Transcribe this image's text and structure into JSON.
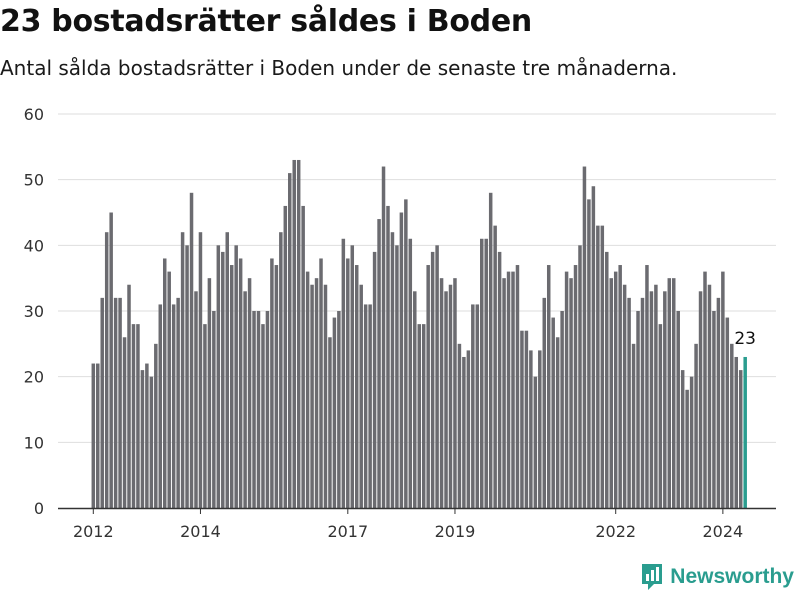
{
  "header": {
    "title": "23 bostadsrätter såldes i Boden",
    "subtitle": "Antal sålda bostadsrätter i Boden under de senaste tre månaderna."
  },
  "brand": {
    "name": "Newsworthy",
    "icon": "newsworthy-logo-icon"
  },
  "colors": {
    "bar": "#6b6b70",
    "highlight": "#2a9d8f",
    "grid": "#dedede",
    "axis": "#333333"
  },
  "chart_data": {
    "type": "bar",
    "title": "23 bostadsrätter såldes i Boden",
    "xlabel": "",
    "ylabel": "",
    "ylim": [
      0,
      60
    ],
    "yticks": [
      0,
      10,
      20,
      30,
      40,
      50,
      60
    ],
    "grid": true,
    "start": "2012-01",
    "frequency": "monthly",
    "xtick_labels": [
      {
        "label": "2012",
        "month_index": 0
      },
      {
        "label": "2014",
        "month_index": 24
      },
      {
        "label": "2017",
        "month_index": 57
      },
      {
        "label": "2019",
        "month_index": 81
      },
      {
        "label": "2022",
        "month_index": 117
      },
      {
        "label": "2024",
        "month_index": 141
      }
    ],
    "values": [
      22,
      22,
      32,
      42,
      45,
      32,
      32,
      26,
      34,
      28,
      28,
      21,
      22,
      20,
      25,
      31,
      38,
      36,
      31,
      32,
      42,
      40,
      48,
      33,
      42,
      28,
      35,
      30,
      40,
      39,
      42,
      37,
      40,
      38,
      33,
      35,
      30,
      30,
      28,
      30,
      38,
      37,
      42,
      46,
      51,
      53,
      53,
      46,
      36,
      34,
      35,
      38,
      34,
      26,
      29,
      30,
      41,
      38,
      40,
      37,
      34,
      31,
      31,
      39,
      44,
      52,
      46,
      42,
      40,
      45,
      47,
      41,
      33,
      28,
      28,
      37,
      39,
      40,
      35,
      33,
      34,
      35,
      25,
      23,
      24,
      31,
      31,
      41,
      41,
      48,
      43,
      39,
      35,
      36,
      36,
      37,
      27,
      27,
      24,
      20,
      24,
      32,
      37,
      29,
      26,
      30,
      36,
      35,
      37,
      40,
      52,
      47,
      49,
      43,
      43,
      39,
      35,
      36,
      37,
      34,
      32,
      25,
      30,
      32,
      37,
      33,
      34,
      28,
      33,
      35,
      35,
      30,
      21,
      18,
      20,
      25,
      33,
      36,
      34,
      30,
      32,
      36,
      29,
      25,
      23,
      21,
      23
    ],
    "highlight_index": 146,
    "highlight_label": "23"
  }
}
